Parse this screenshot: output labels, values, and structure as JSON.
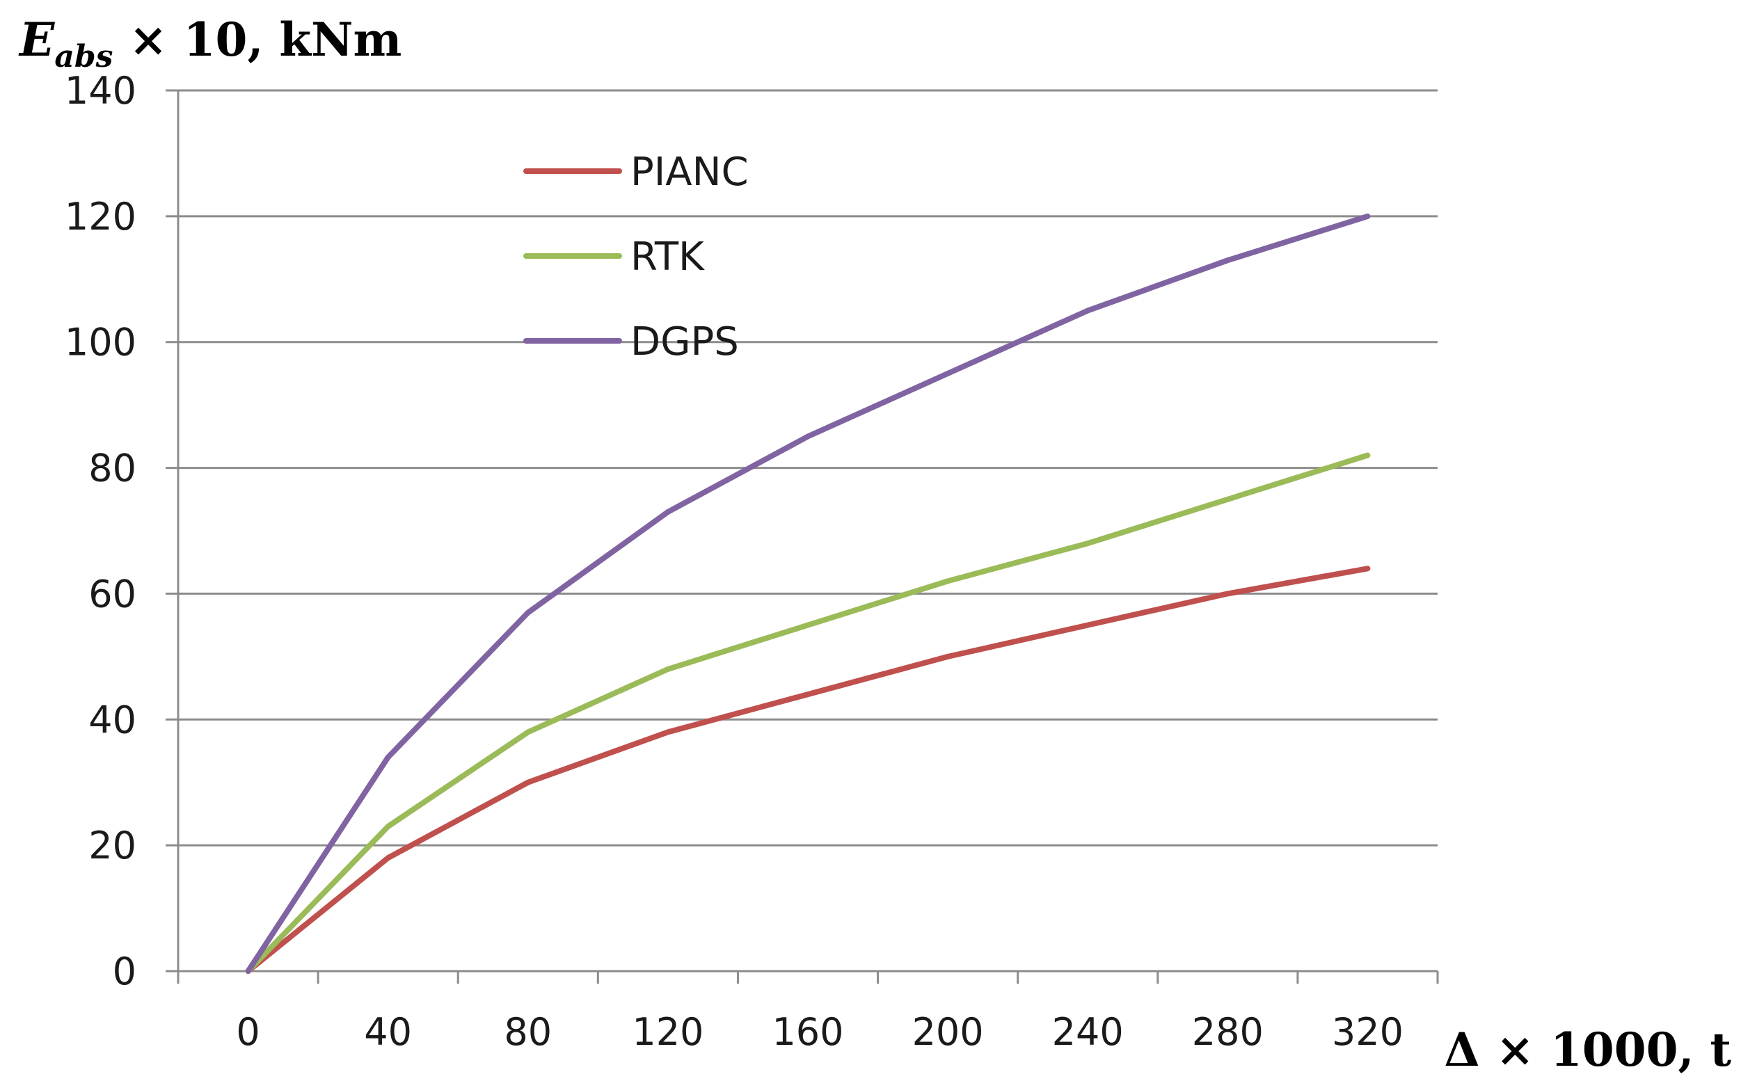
{
  "chart_data": {
    "type": "line",
    "title": "",
    "ylabel": {
      "main": "E",
      "sub": "abs",
      "rest": " × 10, kNm"
    },
    "xlabel": "Δ × 1000, t",
    "x": [
      0,
      40,
      80,
      120,
      160,
      200,
      240,
      280,
      320
    ],
    "xticks": [
      "0",
      "40",
      "80",
      "120",
      "160",
      "200",
      "240",
      "280",
      "320"
    ],
    "ylim": [
      0,
      140
    ],
    "yticks": [
      "0",
      "20",
      "40",
      "60",
      "80",
      "100",
      "120",
      "140"
    ],
    "grid": true,
    "legend_position": "top-left",
    "series": [
      {
        "name": "PIANC",
        "color": "#c0504d",
        "values": [
          0,
          18,
          30,
          38,
          44,
          50,
          55,
          60,
          64
        ]
      },
      {
        "name": "RTK",
        "color": "#9bbb59",
        "values": [
          0,
          23,
          38,
          48,
          55,
          62,
          68,
          75,
          82
        ]
      },
      {
        "name": "DGPS",
        "color": "#8064a2",
        "values": [
          0,
          34,
          57,
          73,
          85,
          95,
          105,
          113,
          120
        ]
      }
    ]
  }
}
